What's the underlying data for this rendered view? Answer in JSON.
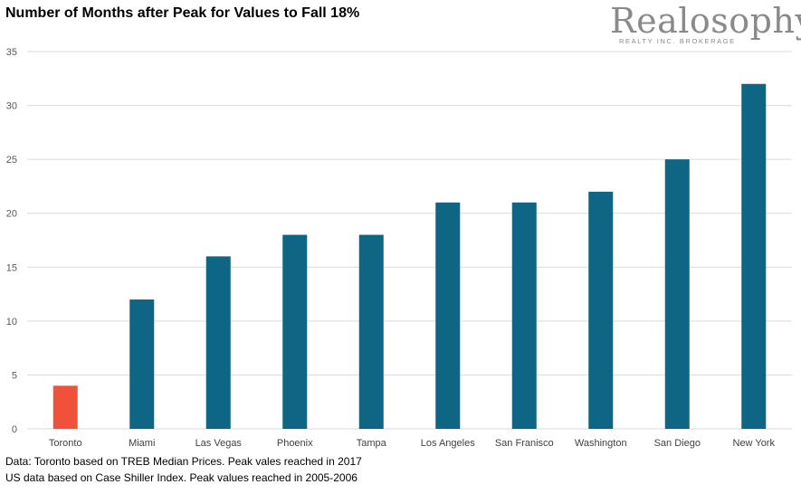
{
  "chart_data": {
    "type": "bar",
    "title": "Number of Months after Peak for Values to Fall 18%",
    "categories": [
      "Toronto",
      "Miami",
      "Las Vegas",
      "Phoenix",
      "Tampa",
      "Los Angeles",
      "San Franisco",
      "Washington",
      "San Diego",
      "New York"
    ],
    "values": [
      4,
      12,
      16,
      18,
      18,
      21,
      21,
      22,
      25,
      32
    ],
    "ylim": [
      0,
      35
    ],
    "yticks": [
      0,
      5,
      10,
      15,
      20,
      25,
      30,
      35
    ],
    "grid": true,
    "xlabel": "",
    "ylabel": "",
    "highlight_category": "Toronto",
    "colors": {
      "default": "#0e6584",
      "highlight": "#f0513a",
      "grid": "#d9d9d9"
    }
  },
  "logo": {
    "name": "Realosophy",
    "tagline": "REALTY INC. BROKERAGE"
  },
  "footnotes": [
    "Data: Toronto based on TREB Median Prices. Peak vales reached in 2017",
    "US data based on Case Shiller Index.  Peak values reached in 2005-2006"
  ]
}
